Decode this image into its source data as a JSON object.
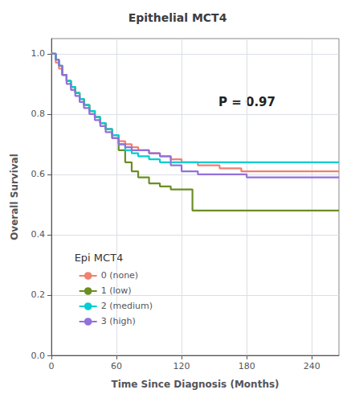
{
  "chart_data": {
    "type": "step",
    "title": "Epithelial MCT4",
    "xlabel": "Time Since Diagnosis (Months)",
    "ylabel": "Overall Survival",
    "annotations": [
      "P = 0.97"
    ],
    "legend_title": "Epi MCT4",
    "legend": "lower left",
    "grid": true,
    "xlim": [
      0,
      265
    ],
    "ylim": [
      0.0,
      1.05
    ],
    "xticks": [
      0,
      60,
      120,
      180,
      240
    ],
    "yticks": [
      {
        "value": 0.0,
        "label": "0.0"
      },
      0.2,
      0.4,
      0.6,
      0.8,
      {
        "value": 1.0,
        "label": "1.0"
      }
    ],
    "series": [
      {
        "name": "0 (none)",
        "color": "#F08070",
        "x": [
          0,
          4,
          7,
          10,
          14,
          18,
          22,
          26,
          30,
          35,
          40,
          45,
          50,
          56,
          62,
          68,
          74,
          80,
          90,
          100,
          110,
          120,
          135,
          155,
          175,
          265
        ],
        "values": [
          1.0,
          0.97,
          0.95,
          0.93,
          0.91,
          0.89,
          0.87,
          0.85,
          0.83,
          0.81,
          0.79,
          0.77,
          0.75,
          0.73,
          0.71,
          0.7,
          0.69,
          0.68,
          0.67,
          0.66,
          0.65,
          0.64,
          0.63,
          0.62,
          0.61,
          0.61
        ]
      },
      {
        "name": "1 (low)",
        "color": "#6B8E23",
        "x": [
          0,
          4,
          7,
          10,
          14,
          18,
          22,
          26,
          30,
          35,
          40,
          45,
          50,
          56,
          62,
          68,
          74,
          80,
          90,
          100,
          110,
          120,
          130,
          140,
          160,
          265
        ],
        "values": [
          1.0,
          0.98,
          0.96,
          0.93,
          0.91,
          0.89,
          0.87,
          0.85,
          0.83,
          0.81,
          0.79,
          0.77,
          0.75,
          0.72,
          0.68,
          0.64,
          0.61,
          0.59,
          0.57,
          0.56,
          0.55,
          0.55,
          0.48,
          0.48,
          0.48,
          0.48
        ]
      },
      {
        "name": "2 (medium)",
        "color": "#00CED1",
        "x": [
          0,
          4,
          7,
          10,
          14,
          18,
          22,
          26,
          30,
          35,
          40,
          45,
          50,
          56,
          62,
          68,
          74,
          80,
          90,
          100,
          110,
          120,
          135,
          165,
          265
        ],
        "values": [
          1.0,
          0.98,
          0.96,
          0.93,
          0.91,
          0.89,
          0.87,
          0.85,
          0.83,
          0.81,
          0.79,
          0.77,
          0.75,
          0.73,
          0.7,
          0.68,
          0.67,
          0.66,
          0.65,
          0.64,
          0.64,
          0.64,
          0.64,
          0.64,
          0.64
        ]
      },
      {
        "name": "3 (high)",
        "color": "#9370DB",
        "x": [
          0,
          4,
          7,
          10,
          14,
          18,
          22,
          26,
          30,
          35,
          40,
          45,
          50,
          56,
          62,
          68,
          74,
          80,
          90,
          100,
          110,
          120,
          135,
          160,
          180,
          265
        ],
        "values": [
          1.0,
          0.98,
          0.96,
          0.93,
          0.9,
          0.88,
          0.86,
          0.84,
          0.82,
          0.8,
          0.78,
          0.76,
          0.74,
          0.72,
          0.7,
          0.69,
          0.68,
          0.68,
          0.67,
          0.66,
          0.63,
          0.61,
          0.6,
          0.6,
          0.59,
          0.59
        ]
      }
    ]
  }
}
